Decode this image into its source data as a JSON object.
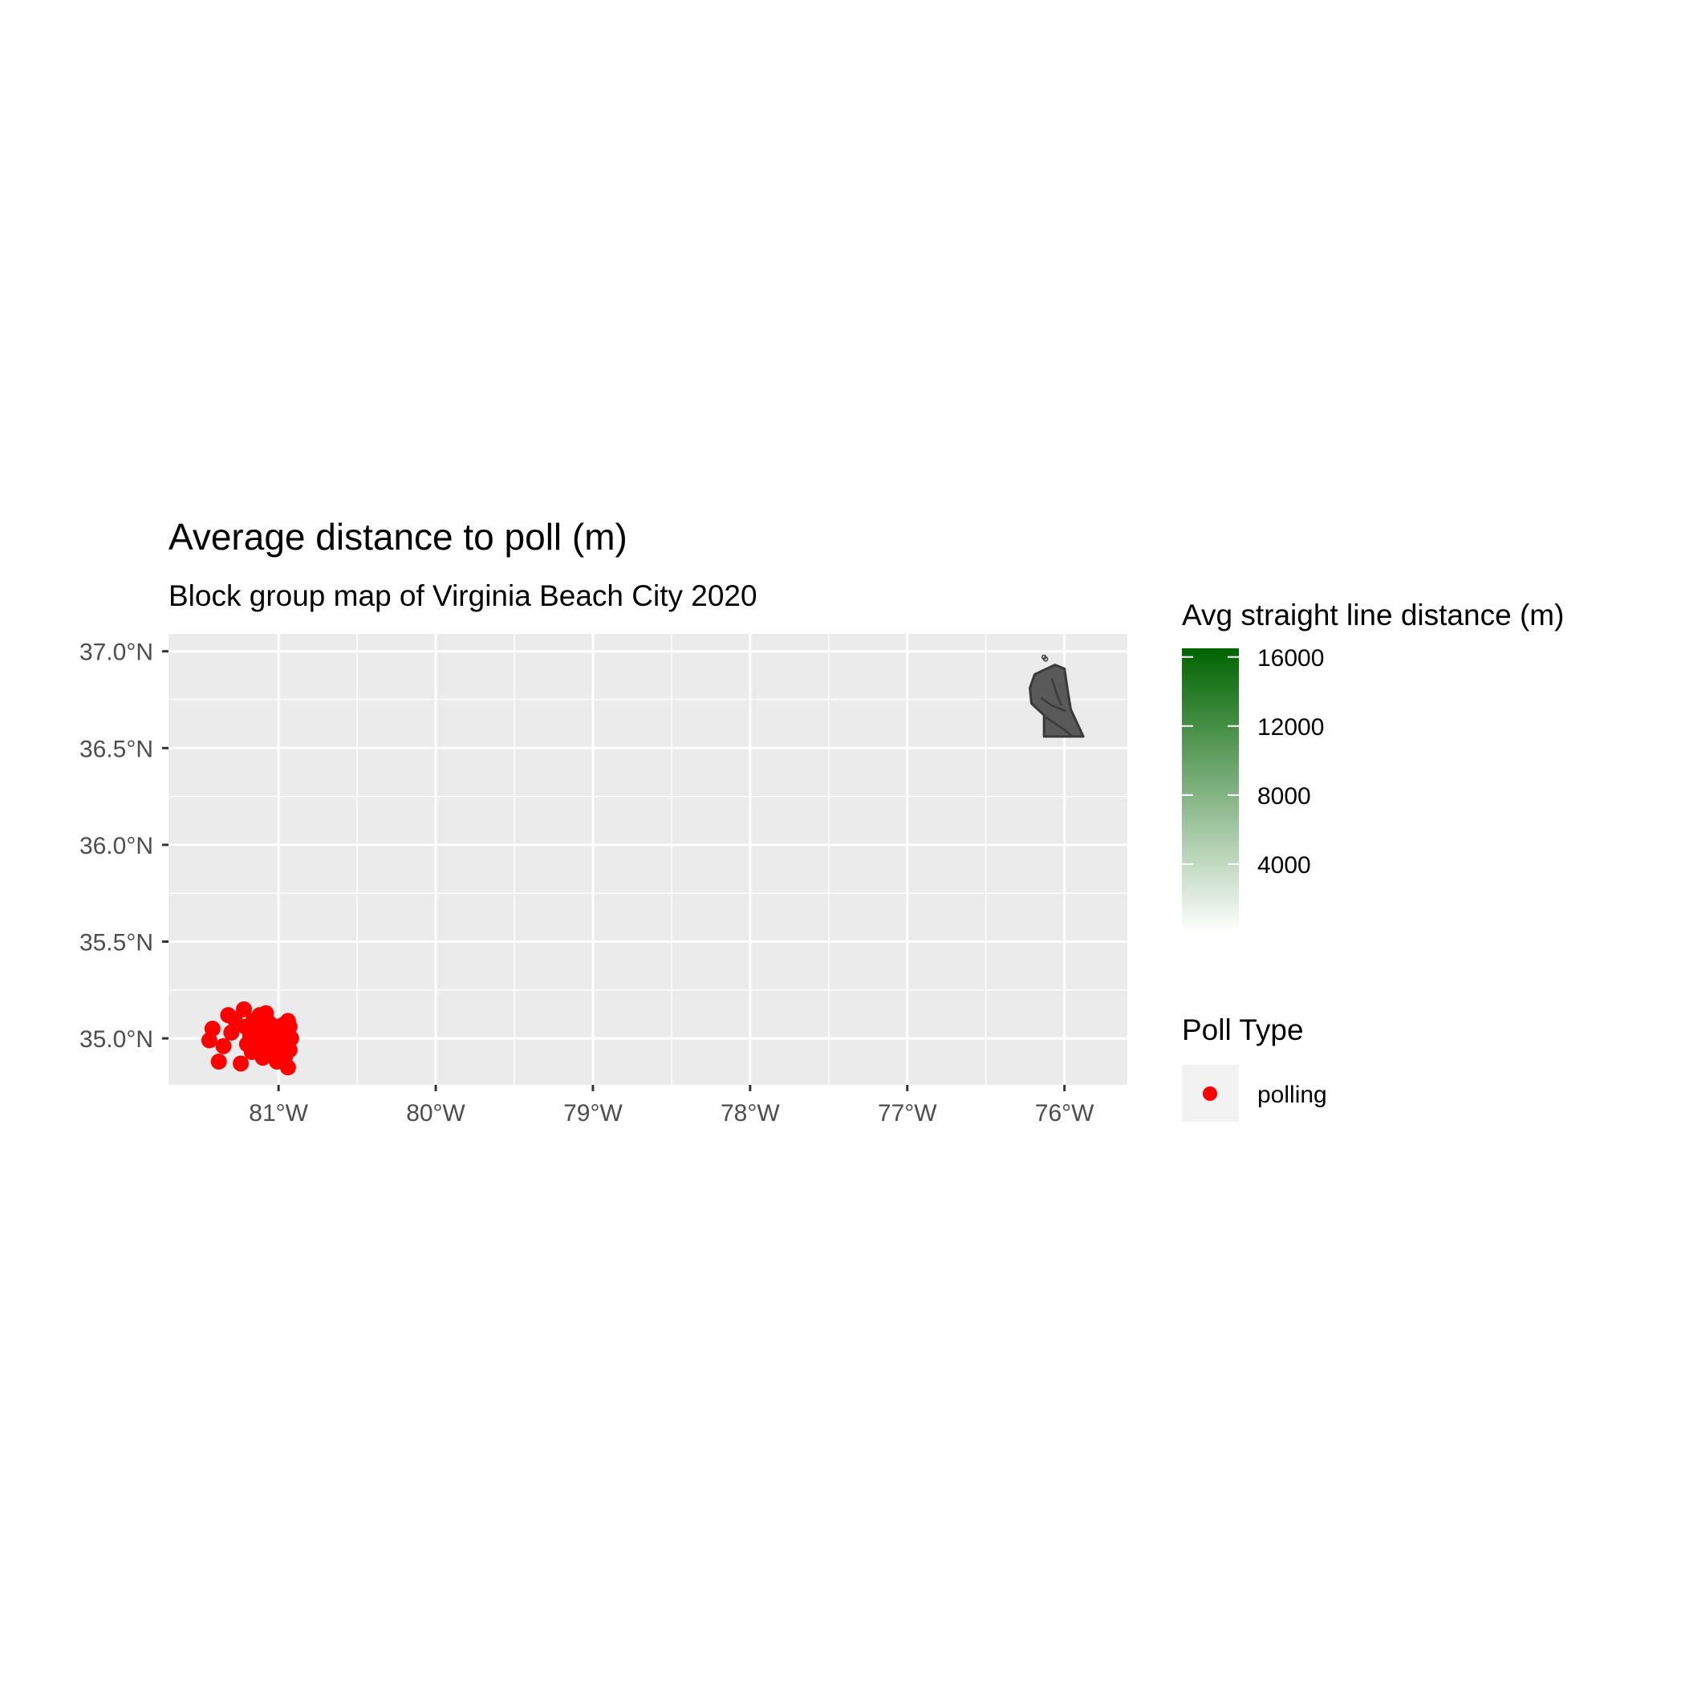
{
  "chart_data": {
    "type": "map",
    "title": "Average distance to poll (m)",
    "subtitle": "Block group map of Virginia Beach City 2020",
    "x_ticks": [
      {
        "value": -81,
        "label": "81°W"
      },
      {
        "value": -80,
        "label": "80°W"
      },
      {
        "value": -79,
        "label": "79°W"
      },
      {
        "value": -78,
        "label": "78°W"
      },
      {
        "value": -77,
        "label": "77°W"
      },
      {
        "value": -76,
        "label": "76°W"
      }
    ],
    "y_ticks": [
      {
        "value": 37.0,
        "label": "37.0°N"
      },
      {
        "value": 36.5,
        "label": "36.5°N"
      },
      {
        "value": 36.0,
        "label": "36.0°N"
      },
      {
        "value": 35.5,
        "label": "35.5°N"
      },
      {
        "value": 35.0,
        "label": "35.0°N"
      }
    ],
    "xlim": [
      -81.7,
      -75.6
    ],
    "ylim": [
      34.76,
      37.09
    ],
    "grid": true,
    "colors": {
      "panel_bg": "#ebebeb",
      "grid": "#ffffff",
      "block_group_fill": "#595959",
      "block_group_border": "#3a3a3a",
      "point": "#ff0000",
      "gradient_low": "#ffffff",
      "gradient_high": "#006400"
    },
    "block_groups": {
      "outline": [
        [
          -76.14,
          36.9
        ],
        [
          -76.06,
          36.93
        ],
        [
          -76.0,
          36.91
        ],
        [
          -75.98,
          36.8
        ],
        [
          -75.96,
          36.7
        ],
        [
          -75.88,
          36.56
        ],
        [
          -76.13,
          36.56
        ],
        [
          -76.13,
          36.67
        ],
        [
          -76.21,
          36.73
        ],
        [
          -76.22,
          36.81
        ],
        [
          -76.19,
          36.88
        ]
      ],
      "internal_lines": [
        [
          [
            -76.12,
            36.66
          ],
          [
            -76.01,
            36.6
          ],
          [
            -75.95,
            36.56
          ]
        ],
        [
          [
            -76.08,
            36.86
          ],
          [
            -76.05,
            36.78
          ],
          [
            -76.02,
            36.72
          ]
        ],
        [
          [
            -76.15,
            36.76
          ],
          [
            -76.08,
            36.72
          ],
          [
            -75.99,
            36.69
          ]
        ]
      ],
      "islands": [
        [
          -76.12,
          36.96
        ],
        [
          -76.13,
          36.97
        ]
      ]
    },
    "color_scale": {
      "title": "Avg straight line distance (m)",
      "min": 0,
      "max": 16500,
      "breaks": [
        16000,
        12000,
        8000,
        4000
      ]
    },
    "shape_legend": {
      "title": "Poll Type",
      "entries": [
        {
          "label": "polling",
          "color": "#ff0000"
        }
      ]
    },
    "series": [
      {
        "name": "polling",
        "points": [
          [
            -81.42,
            35.05
          ],
          [
            -81.44,
            34.99
          ],
          [
            -81.38,
            34.88
          ],
          [
            -81.35,
            34.96
          ],
          [
            -81.32,
            35.12
          ],
          [
            -81.3,
            35.03
          ],
          [
            -81.28,
            35.1
          ],
          [
            -81.24,
            34.87
          ],
          [
            -81.22,
            35.15
          ],
          [
            -81.21,
            35.06
          ],
          [
            -81.2,
            34.97
          ],
          [
            -81.18,
            35.01
          ],
          [
            -81.16,
            35.09
          ],
          [
            -81.14,
            34.94
          ],
          [
            -81.13,
            35.03
          ],
          [
            -81.12,
            35.12
          ],
          [
            -81.11,
            34.98
          ],
          [
            -81.1,
            34.9
          ],
          [
            -81.09,
            35.06
          ],
          [
            -81.08,
            35.13
          ],
          [
            -81.07,
            34.96
          ],
          [
            -81.06,
            35.01
          ],
          [
            -81.05,
            34.92
          ],
          [
            -81.04,
            35.04
          ],
          [
            -81.03,
            34.99
          ],
          [
            -81.02,
            34.9
          ],
          [
            -81.01,
            35.06
          ],
          [
            -81.0,
            34.95
          ],
          [
            -80.99,
            35.02
          ],
          [
            -80.98,
            34.93
          ],
          [
            -80.97,
            35.07
          ],
          [
            -80.96,
            34.98
          ],
          [
            -80.95,
            35.03
          ],
          [
            -80.94,
            35.09
          ],
          [
            -80.94,
            34.85
          ],
          [
            -80.93,
            34.94
          ],
          [
            -80.92,
            35.0
          ],
          [
            -80.93,
            35.06
          ],
          [
            -81.15,
            35.04
          ],
          [
            -81.06,
            35.08
          ],
          [
            -81.01,
            34.88
          ],
          [
            -81.17,
            34.93
          ],
          [
            -81.1,
            35.0
          ],
          [
            -80.96,
            34.9
          ]
        ]
      }
    ]
  }
}
